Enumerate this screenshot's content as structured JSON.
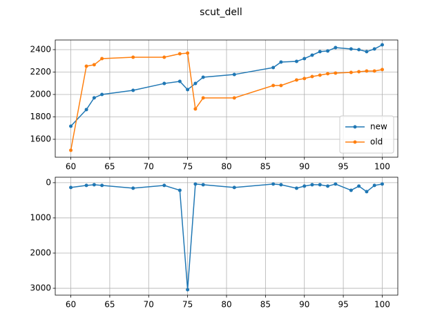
{
  "title": "scut_dell",
  "chart_data": [
    {
      "type": "line",
      "grid": true,
      "legend": "lower right",
      "xlim": [
        58,
        102
      ],
      "xticks": [
        60,
        65,
        70,
        75,
        80,
        85,
        90,
        95,
        100
      ],
      "ylim": [
        1440,
        2486
      ],
      "yticks": [
        1600,
        1800,
        2000,
        2200,
        2400
      ],
      "series": [
        {
          "name": "new",
          "color": "#1f77b4",
          "x": [
            60,
            62,
            63,
            64,
            68,
            72,
            74,
            75,
            76,
            77,
            81,
            86,
            87,
            89,
            90,
            91,
            92,
            93,
            94,
            96,
            97,
            98,
            99,
            100
          ],
          "values": [
            1717,
            1865,
            1970,
            2000,
            2037,
            2098,
            2117,
            2043,
            2098,
            2154,
            2178,
            2240,
            2289,
            2295,
            2320,
            2351,
            2382,
            2388,
            2418,
            2406,
            2400,
            2382,
            2406,
            2443
          ]
        },
        {
          "name": "old",
          "color": "#ff7f0e",
          "x": [
            60,
            62,
            63,
            64,
            68,
            72,
            74,
            75,
            76,
            77,
            81,
            86,
            87,
            89,
            90,
            91,
            92,
            93,
            94,
            96,
            97,
            98,
            99,
            100
          ],
          "values": [
            1502,
            2252,
            2265,
            2320,
            2332,
            2332,
            2363,
            2369,
            1871,
            1969,
            1969,
            2080,
            2080,
            2129,
            2142,
            2160,
            2172,
            2185,
            2191,
            2197,
            2203,
            2209,
            2209,
            2222
          ]
        }
      ]
    },
    {
      "type": "line",
      "grid": true,
      "inverted_y": true,
      "xlim": [
        58,
        102
      ],
      "xticks": [
        60,
        65,
        70,
        75,
        80,
        85,
        90,
        95,
        100
      ],
      "ylim": [
        3195,
        -155
      ],
      "yticks": [
        0,
        1000,
        2000,
        3000
      ],
      "series": [
        {
          "color": "#1f77b4",
          "x": [
            60,
            62,
            63,
            64,
            68,
            72,
            74,
            75,
            76,
            77,
            81,
            86,
            87,
            89,
            90,
            91,
            92,
            93,
            94,
            96,
            97,
            98,
            99,
            100
          ],
          "values": [
            137,
            78,
            59,
            78,
            157,
            78,
            216,
            3040,
            39,
            59,
            137,
            39,
            59,
            157,
            98,
            59,
            59,
            98,
            39,
            216,
            98,
            255,
            78,
            39
          ]
        }
      ]
    }
  ]
}
